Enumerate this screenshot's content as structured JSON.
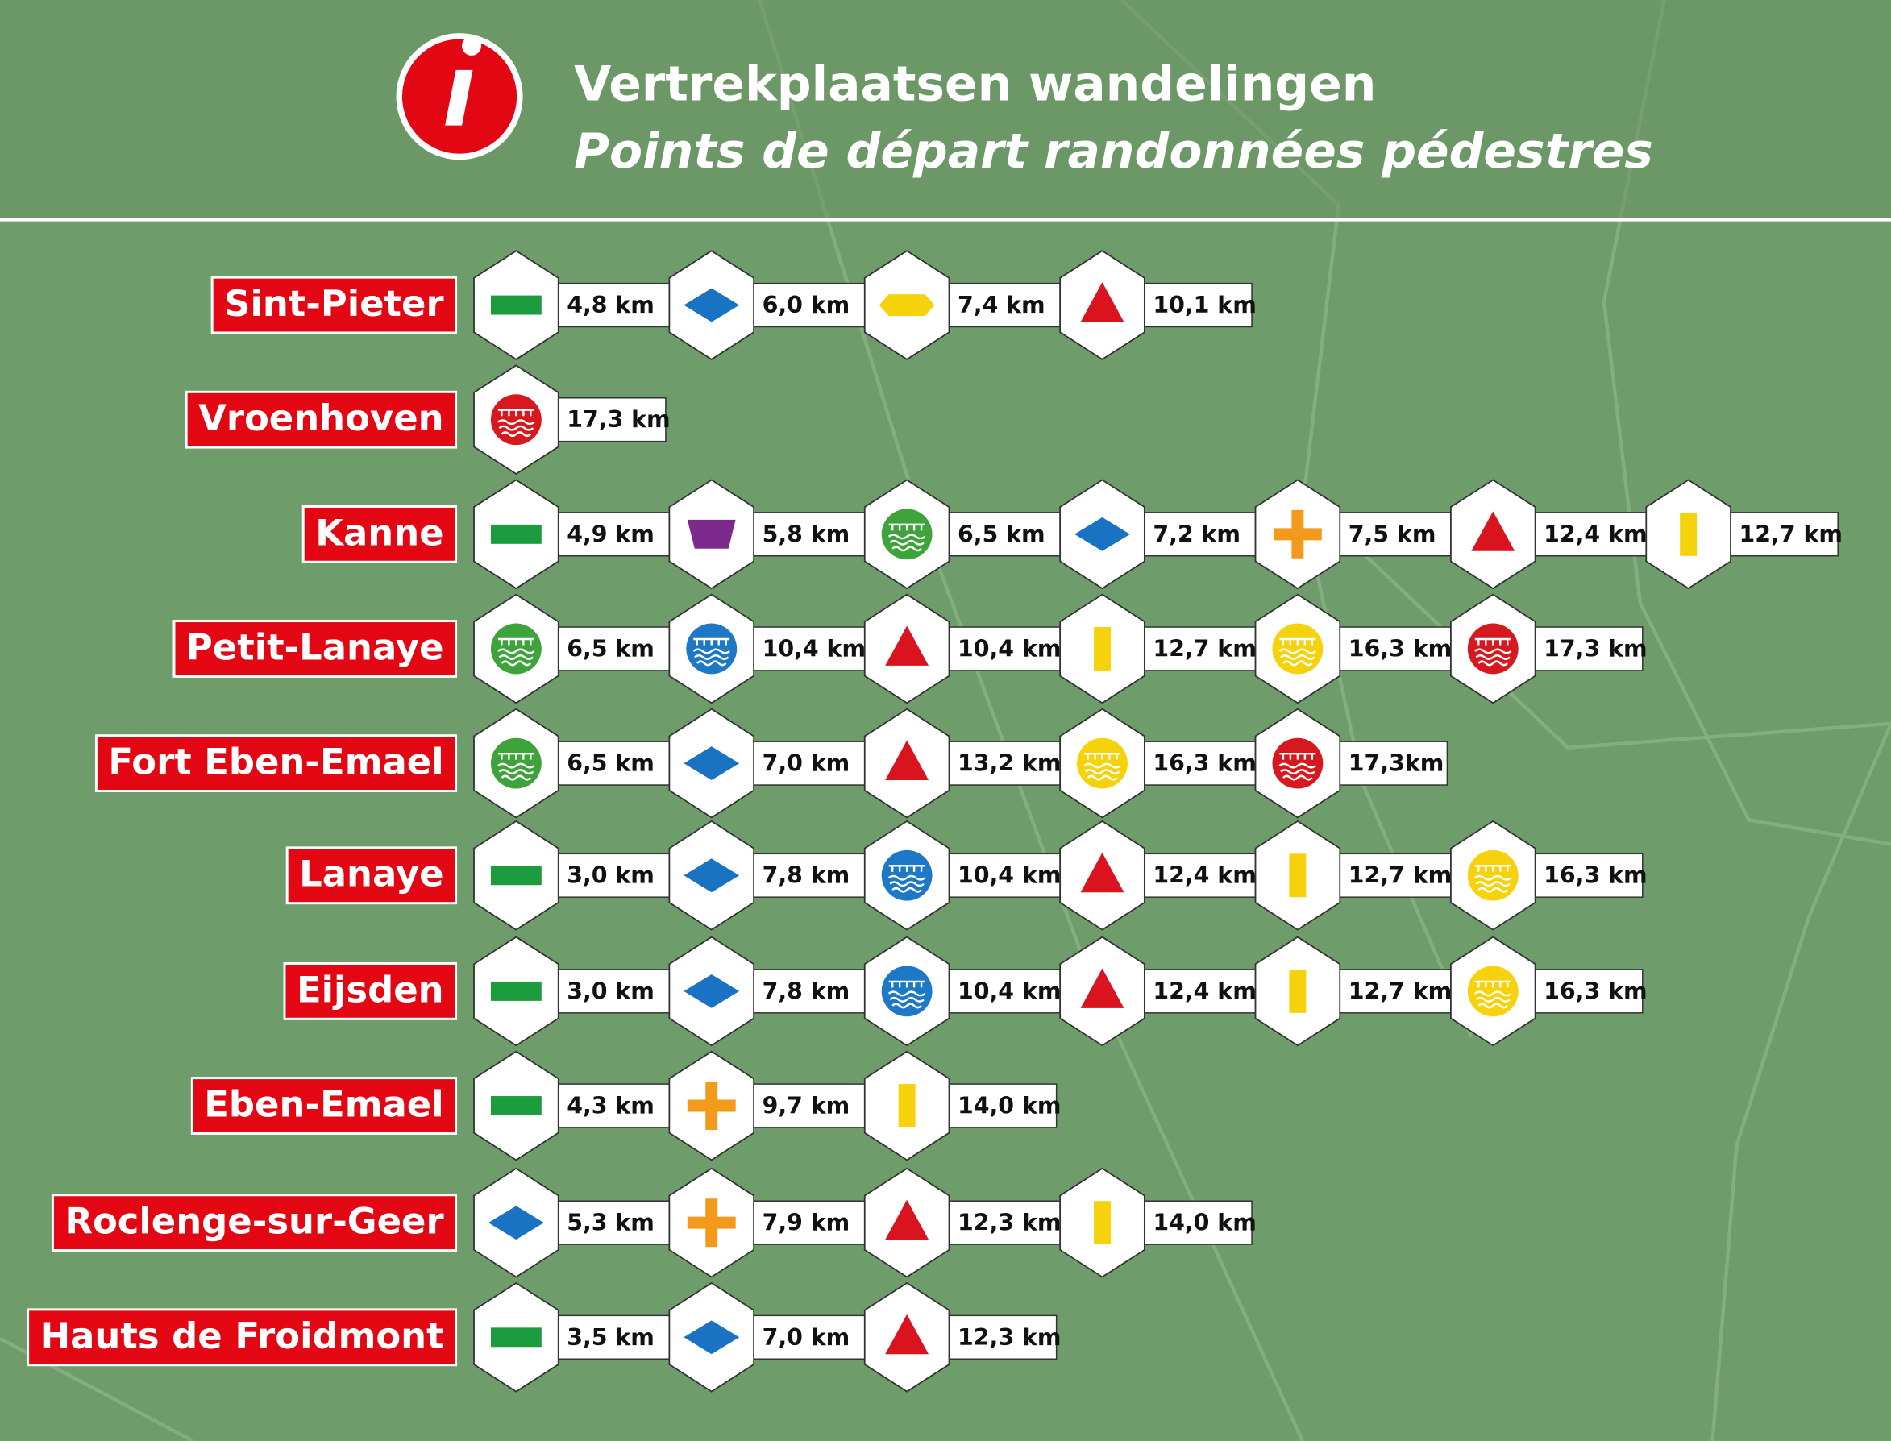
{
  "header": {
    "title": "Vertrekplaatsen wandelingen",
    "subtitle": "Points de départ randonnées pédestres"
  },
  "rows": [
    {
      "place": "Sint-Pieter",
      "routes": [
        {
          "shape": "rect",
          "color": "#1c9b3f",
          "distance": "4,8 km"
        },
        {
          "shape": "diamond",
          "color": "#1a73c2",
          "distance": "6,0 km"
        },
        {
          "shape": "flat-hexagon",
          "color": "#f5d20b",
          "distance": "7,4 km"
        },
        {
          "shape": "triangle",
          "color": "#d9141e",
          "distance": "10,1 km"
        }
      ]
    },
    {
      "place": "Vroenhoven",
      "routes": [
        {
          "shape": "circle",
          "color": "#d7191f",
          "distance": "17,3 km"
        }
      ]
    },
    {
      "place": "Kanne",
      "routes": [
        {
          "shape": "rect",
          "color": "#1c9b3f",
          "distance": "4,9 km"
        },
        {
          "shape": "trapezoid",
          "color": "#7b2a8c",
          "distance": "5,8 km"
        },
        {
          "shape": "circle",
          "color": "#3ea33a",
          "distance": "6,5 km"
        },
        {
          "shape": "diamond",
          "color": "#1a73c2",
          "distance": "7,2 km"
        },
        {
          "shape": "plus",
          "color": "#f39a1d",
          "distance": "7,5 km"
        },
        {
          "shape": "triangle",
          "color": "#d9141e",
          "distance": "12,4 km"
        },
        {
          "shape": "bar",
          "color": "#f5d20b",
          "distance": "12,7 km"
        }
      ]
    },
    {
      "place": "Petit-Lanaye",
      "routes": [
        {
          "shape": "circle",
          "color": "#3ea33a",
          "distance": "6,5 km"
        },
        {
          "shape": "circle",
          "color": "#1d78c6",
          "distance": "10,4 km"
        },
        {
          "shape": "triangle",
          "color": "#d9141e",
          "distance": "10,4 km"
        },
        {
          "shape": "bar",
          "color": "#f5d20b",
          "distance": "12,7 km"
        },
        {
          "shape": "circle",
          "color": "#f5d20b",
          "distance": "16,3 km"
        },
        {
          "shape": "circle",
          "color": "#d7191f",
          "distance": "17,3 km"
        }
      ]
    },
    {
      "place": "Fort Eben-Emael",
      "routes": [
        {
          "shape": "circle",
          "color": "#3ea33a",
          "distance": "6,5 km"
        },
        {
          "shape": "diamond",
          "color": "#1a73c2",
          "distance": "7,0 km"
        },
        {
          "shape": "triangle",
          "color": "#d9141e",
          "distance": "13,2 km"
        },
        {
          "shape": "circle",
          "color": "#f5d20b",
          "distance": "16,3 km"
        },
        {
          "shape": "circle",
          "color": "#d7191f",
          "distance": "17,3km"
        }
      ]
    },
    {
      "place": "Lanaye",
      "routes": [
        {
          "shape": "rect",
          "color": "#1c9b3f",
          "distance": "3,0 km"
        },
        {
          "shape": "diamond",
          "color": "#1a73c2",
          "distance": "7,8 km"
        },
        {
          "shape": "circle",
          "color": "#1d78c6",
          "distance": "10,4 km"
        },
        {
          "shape": "triangle",
          "color": "#d9141e",
          "distance": "12,4 km"
        },
        {
          "shape": "bar",
          "color": "#f5d20b",
          "distance": "12,7 km"
        },
        {
          "shape": "circle",
          "color": "#f5d20b",
          "distance": "16,3 km"
        }
      ]
    },
    {
      "place": "Eijsden",
      "routes": [
        {
          "shape": "rect",
          "color": "#1c9b3f",
          "distance": "3,0 km"
        },
        {
          "shape": "diamond",
          "color": "#1a73c2",
          "distance": "7,8 km"
        },
        {
          "shape": "circle",
          "color": "#1d78c6",
          "distance": "10,4 km"
        },
        {
          "shape": "triangle",
          "color": "#d9141e",
          "distance": "12,4 km"
        },
        {
          "shape": "bar",
          "color": "#f5d20b",
          "distance": "12,7 km"
        },
        {
          "shape": "circle",
          "color": "#f5d20b",
          "distance": "16,3 km"
        }
      ]
    },
    {
      "place": "Eben-Emael",
      "routes": [
        {
          "shape": "rect",
          "color": "#1c9b3f",
          "distance": "4,3 km"
        },
        {
          "shape": "plus",
          "color": "#f39a1d",
          "distance": "9,7 km"
        },
        {
          "shape": "bar",
          "color": "#f5d20b",
          "distance": "14,0 km"
        }
      ]
    },
    {
      "place": "Roclenge-sur-Geer",
      "routes": [
        {
          "shape": "diamond",
          "color": "#1a73c2",
          "distance": "5,3 km"
        },
        {
          "shape": "plus",
          "color": "#f39a1d",
          "distance": "7,9 km"
        },
        {
          "shape": "triangle",
          "color": "#d9141e",
          "distance": "12,3 km"
        },
        {
          "shape": "bar",
          "color": "#f5d20b",
          "distance": "14,0 km"
        }
      ]
    },
    {
      "place": "Hauts de Froidmont",
      "routes": [
        {
          "shape": "rect",
          "color": "#1c9b3f",
          "distance": "3,5 km"
        },
        {
          "shape": "diamond",
          "color": "#1a73c2",
          "distance": "7,0 km"
        },
        {
          "shape": "triangle",
          "color": "#d9141e",
          "distance": "12,3 km"
        }
      ]
    }
  ]
}
